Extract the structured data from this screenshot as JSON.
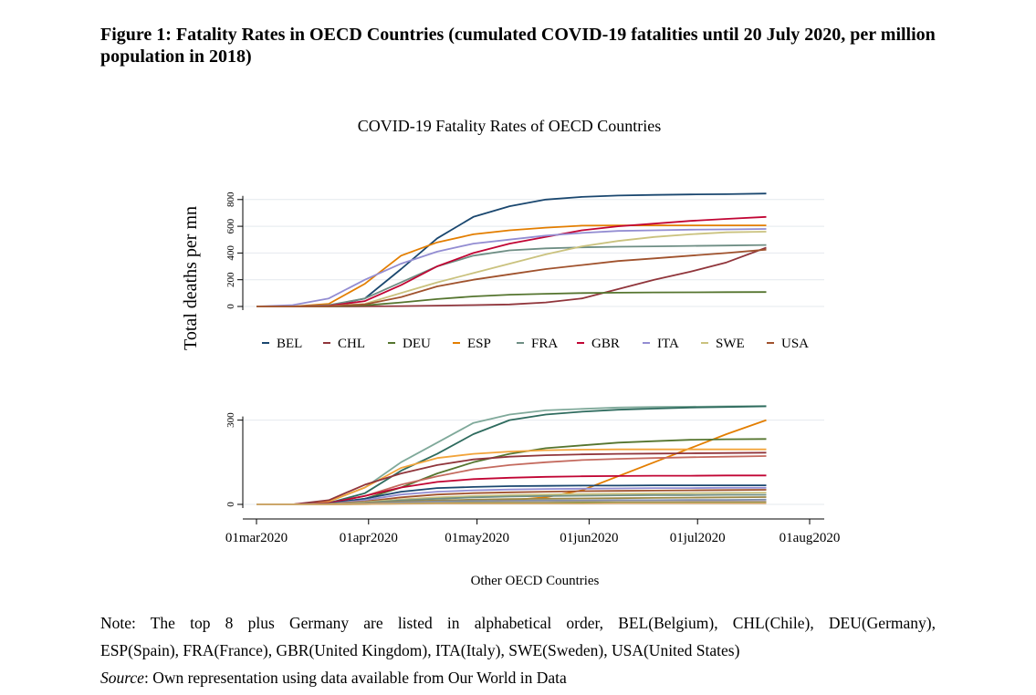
{
  "figure": {
    "title": "Figure 1: Fatality Rates in OECD Countries (cumulated COVID-19 fatalities until 20 July 2020, per million population in 2018)",
    "note_line1": "Note: The top 8 plus Germany are listed in alphabetical order, BEL(Belgium), CHL(Chile), DEU(Germany),",
    "note_line2": "ESP(Spain), FRA(France), GBR(United Kingdom), ITA(Italy), SWE(Sweden), USA(United States)",
    "source_label": "Source",
    "source_text": ": Own representation using data available from Our World in Data"
  },
  "chart_data": [
    {
      "type": "line",
      "title": "COVID-19 Fatality Rates of OECD Countries",
      "ylabel": "Total deaths per mn",
      "xlabel": "",
      "x_dates": [
        "2020-03-01",
        "2020-03-11",
        "2020-03-21",
        "2020-03-31",
        "2020-04-10",
        "2020-04-20",
        "2020-04-30",
        "2020-05-10",
        "2020-05-20",
        "2020-05-30",
        "2020-06-09",
        "2020-06-19",
        "2020-06-29",
        "2020-07-09",
        "2020-07-20"
      ],
      "yticks": [
        0,
        200,
        400,
        600,
        800
      ],
      "ylim": [
        0,
        860
      ],
      "grid": true,
      "legend_position": "bottom",
      "series": [
        {
          "name": "BEL",
          "color": "#1a476f",
          "values": [
            0,
            0,
            5,
            60,
            280,
            510,
            670,
            750,
            800,
            820,
            830,
            835,
            838,
            840,
            845
          ]
        },
        {
          "name": "CHL",
          "color": "#90353b",
          "values": [
            0,
            0,
            0,
            1,
            3,
            6,
            10,
            15,
            30,
            60,
            130,
            200,
            260,
            330,
            440
          ]
        },
        {
          "name": "DEU",
          "color": "#55752f",
          "values": [
            0,
            0,
            1,
            8,
            30,
            55,
            75,
            88,
            95,
            100,
            103,
            105,
            106,
            107,
            108
          ]
        },
        {
          "name": "ESP",
          "color": "#e37e00",
          "values": [
            0,
            0,
            20,
            170,
            380,
            480,
            540,
            570,
            590,
            605,
            607,
            607,
            607,
            607,
            607
          ]
        },
        {
          "name": "FRA",
          "color": "#6e8e84",
          "values": [
            0,
            0,
            10,
            60,
            180,
            300,
            380,
            420,
            435,
            442,
            447,
            450,
            453,
            456,
            460
          ]
        },
        {
          "name": "GBR",
          "color": "#c10534",
          "values": [
            0,
            0,
            5,
            40,
            160,
            300,
            400,
            470,
            520,
            570,
            600,
            620,
            640,
            655,
            670
          ]
        },
        {
          "name": "ITA",
          "color": "#938dd2",
          "values": [
            0,
            10,
            60,
            200,
            320,
            410,
            470,
            500,
            530,
            550,
            565,
            570,
            575,
            577,
            580
          ]
        },
        {
          "name": "SWE",
          "color": "#cac27e",
          "values": [
            0,
            0,
            3,
            20,
            100,
            180,
            250,
            320,
            390,
            450,
            490,
            520,
            540,
            555,
            560
          ]
        },
        {
          "name": "USA",
          "color": "#a0522d",
          "values": [
            0,
            0,
            2,
            15,
            70,
            150,
            200,
            240,
            280,
            310,
            340,
            360,
            380,
            400,
            425
          ]
        }
      ]
    },
    {
      "type": "line",
      "title": "",
      "xlabel": "Other OECD Countries",
      "x_dates": [
        "2020-03-01",
        "2020-03-11",
        "2020-03-21",
        "2020-03-31",
        "2020-04-10",
        "2020-04-20",
        "2020-04-30",
        "2020-05-10",
        "2020-05-20",
        "2020-05-30",
        "2020-06-09",
        "2020-06-19",
        "2020-06-29",
        "2020-07-09",
        "2020-07-20"
      ],
      "xticks": [
        "01mar2020",
        "01apr2020",
        "01may2020",
        "01jun2020",
        "01jul2020",
        "01aug2020"
      ],
      "yticks": [
        0,
        300
      ],
      "ylim": [
        0,
        380
      ],
      "grid": true,
      "series": [
        {
          "color": "#7fa99a",
          "values": [
            0,
            0,
            10,
            60,
            150,
            220,
            290,
            320,
            335,
            340,
            345,
            347,
            348,
            349,
            350
          ]
        },
        {
          "color": "#2e6b5e",
          "values": [
            0,
            0,
            5,
            40,
            120,
            180,
            250,
            300,
            320,
            330,
            337,
            341,
            345,
            347,
            349
          ]
        },
        {
          "color": "#e37e00",
          "values": [
            0,
            0,
            0,
            2,
            5,
            8,
            10,
            15,
            25,
            50,
            100,
            150,
            200,
            250,
            300
          ]
        },
        {
          "color": "#55752f",
          "values": [
            0,
            0,
            3,
            20,
            60,
            110,
            150,
            180,
            200,
            210,
            220,
            225,
            230,
            232,
            233
          ]
        },
        {
          "color": "#f2a43a",
          "values": [
            0,
            0,
            10,
            60,
            130,
            165,
            180,
            188,
            193,
            195,
            196,
            196,
            196,
            196,
            196
          ]
        },
        {
          "color": "#90353b",
          "values": [
            0,
            0,
            15,
            70,
            110,
            140,
            160,
            170,
            175,
            178,
            180,
            181,
            182,
            183,
            184
          ]
        },
        {
          "color": "#c46a5e",
          "values": [
            0,
            0,
            5,
            30,
            70,
            100,
            125,
            140,
            150,
            158,
            162,
            165,
            168,
            170,
            172
          ]
        },
        {
          "color": "#c10534",
          "values": [
            0,
            0,
            5,
            30,
            60,
            80,
            90,
            95,
            98,
            100,
            101,
            102,
            102,
            103,
            103
          ]
        },
        {
          "color": "#1a476f",
          "values": [
            0,
            0,
            3,
            20,
            45,
            58,
            62,
            65,
            66,
            67,
            67,
            68,
            68,
            68,
            68
          ]
        },
        {
          "color": "#938dd2",
          "values": [
            0,
            0,
            2,
            15,
            35,
            45,
            50,
            53,
            55,
            56,
            57,
            58,
            58,
            59,
            59
          ]
        },
        {
          "color": "#a0522d",
          "values": [
            0,
            0,
            2,
            10,
            25,
            35,
            40,
            43,
            45,
            47,
            48,
            49,
            50,
            51,
            52
          ]
        },
        {
          "color": "#cac27e",
          "values": [
            0,
            0,
            1,
            8,
            18,
            25,
            30,
            33,
            35,
            37,
            38,
            39,
            40,
            41,
            42
          ]
        },
        {
          "color": "#6e8e84",
          "values": [
            0,
            0,
            1,
            6,
            14,
            20,
            25,
            28,
            30,
            31,
            32,
            33,
            33,
            34,
            34
          ]
        },
        {
          "color": "#9c8847",
          "values": [
            0,
            0,
            1,
            5,
            10,
            14,
            17,
            19,
            20,
            21,
            22,
            23,
            24,
            25,
            26
          ]
        },
        {
          "color": "#7d8da8",
          "values": [
            0,
            0,
            0,
            3,
            7,
            10,
            12,
            13,
            14,
            14,
            15,
            15,
            16,
            16,
            17
          ]
        },
        {
          "color": "#bfa19c",
          "values": [
            0,
            0,
            0,
            2,
            4,
            6,
            7,
            8,
            8,
            9,
            9,
            9,
            10,
            10,
            10
          ]
        },
        {
          "color": "#6b8e23",
          "values": [
            0,
            0,
            0,
            1,
            3,
            4,
            5,
            5,
            5,
            6,
            6,
            6,
            6,
            6,
            6
          ]
        },
        {
          "color": "#d7aa70",
          "values": [
            0,
            0,
            0,
            1,
            2,
            3,
            3,
            3,
            3,
            3,
            4,
            4,
            4,
            4,
            4
          ]
        }
      ]
    }
  ]
}
